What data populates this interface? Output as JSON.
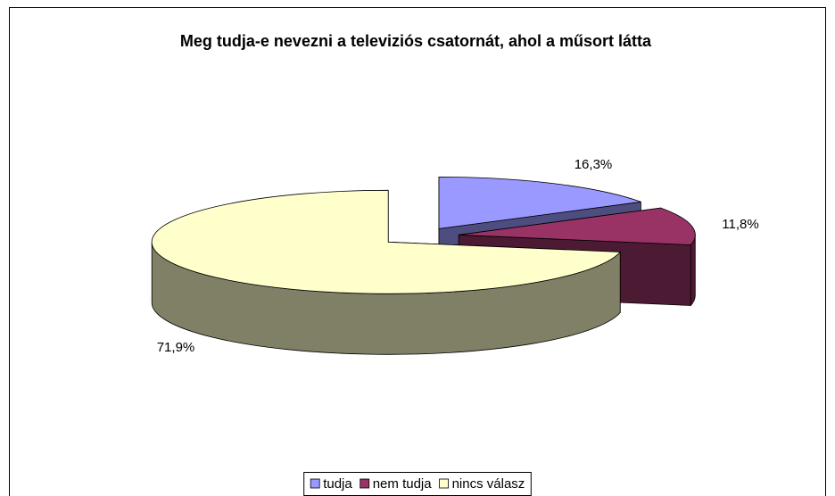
{
  "chart_data": {
    "type": "pie3d",
    "title": "Meg tudja-e nevezni a televiziós csatornát, ahol a műsort látta",
    "categories": [
      "tudja",
      "nem tudja",
      "nincs válasz"
    ],
    "values": [
      16.3,
      11.8,
      71.9
    ],
    "value_labels": [
      "16,3%",
      "11,8%",
      "71,9%"
    ],
    "colors": [
      "#9999ff",
      "#993366",
      "#ffffcc"
    ],
    "side_colors": [
      "#4d4d80",
      "#4d1a33",
      "#808066"
    ],
    "legend": "bottom"
  }
}
